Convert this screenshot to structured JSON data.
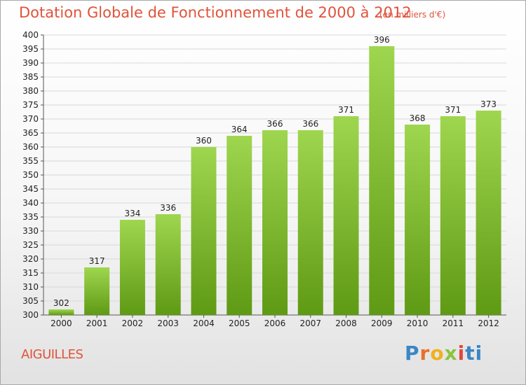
{
  "title": "Dotation Globale de Fonctionnement de 2000 à 2012",
  "unit": "(en milliers d'€)",
  "commune": "AIGUILLES",
  "logo": {
    "text": "Proxiti",
    "letters": [
      "P",
      "r",
      "o",
      "x",
      "i",
      "ti"
    ]
  },
  "colors": {
    "title": "#e0533a",
    "bar_top": "#9fd64f",
    "bar_bottom": "#5f9a14",
    "grid": "#d8d8d8"
  },
  "chart_data": {
    "type": "bar",
    "categories": [
      "2000",
      "2001",
      "2002",
      "2003",
      "2004",
      "2005",
      "2006",
      "2007",
      "2008",
      "2009",
      "2010",
      "2011",
      "2012"
    ],
    "values": [
      302,
      317,
      334,
      336,
      360,
      364,
      366,
      366,
      371,
      396,
      368,
      371,
      373
    ],
    "data_labels": [
      "302",
      "317",
      "334",
      "336",
      "360",
      "364",
      "366",
      "366",
      "371",
      "396",
      "368",
      "371",
      "373"
    ],
    "ylim": [
      300,
      400
    ],
    "yticks": [
      300,
      305,
      310,
      315,
      320,
      325,
      330,
      335,
      340,
      345,
      350,
      355,
      360,
      365,
      370,
      375,
      380,
      385,
      390,
      395,
      400
    ],
    "ytick_labels": [
      "300",
      "305",
      "310",
      "315",
      "320",
      "325",
      "330",
      "335",
      "340",
      "345",
      "350",
      "355",
      "360",
      "365",
      "370",
      "375",
      "380",
      "385",
      "390",
      "395",
      "400"
    ],
    "grid": true,
    "xlabel": "",
    "ylabel": ""
  }
}
